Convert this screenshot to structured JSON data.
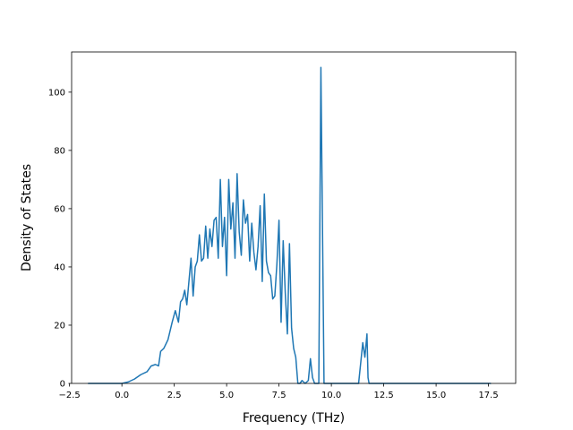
{
  "chart_data": {
    "type": "line",
    "title": "",
    "xlabel": "Frequency (THz)",
    "ylabel": "Density of States",
    "xlim": [
      -2.4,
      18.8
    ],
    "ylim": [
      0,
      113.8
    ],
    "grid": false,
    "legend": "none",
    "x_ticks": [
      -2.5,
      0.0,
      2.5,
      5.0,
      7.5,
      10.0,
      12.5,
      15.0,
      17.5
    ],
    "x_tick_labels": [
      "−2.5",
      "0.0",
      "2.5",
      "5.0",
      "7.5",
      "10.0",
      "12.5",
      "15.0",
      "17.5"
    ],
    "y_ticks": [
      0,
      20,
      40,
      60,
      80,
      100
    ],
    "y_tick_labels": [
      "0",
      "20",
      "40",
      "60",
      "80",
      "100"
    ],
    "series": [
      {
        "color": "#1f77b4",
        "x": [
          -1.6,
          -1.0,
          -0.5,
          0.0,
          0.3,
          0.6,
          0.9,
          1.2,
          1.4,
          1.6,
          1.75,
          1.85,
          2.0,
          2.2,
          2.4,
          2.55,
          2.7,
          2.8,
          2.9,
          3.0,
          3.1,
          3.2,
          3.3,
          3.4,
          3.5,
          3.6,
          3.7,
          3.8,
          3.9,
          4.0,
          4.1,
          4.2,
          4.3,
          4.4,
          4.5,
          4.6,
          4.7,
          4.8,
          4.9,
          5.0,
          5.1,
          5.2,
          5.3,
          5.4,
          5.5,
          5.6,
          5.7,
          5.8,
          5.9,
          6.0,
          6.1,
          6.2,
          6.3,
          6.4,
          6.5,
          6.6,
          6.7,
          6.8,
          6.9,
          7.0,
          7.1,
          7.2,
          7.3,
          7.4,
          7.5,
          7.6,
          7.7,
          7.8,
          7.9,
          8.0,
          8.1,
          8.2,
          8.3,
          8.4,
          8.5,
          8.6,
          8.75,
          8.9,
          9.0,
          9.1,
          9.2,
          9.3,
          9.4,
          9.5,
          9.65,
          9.75,
          9.8,
          9.85,
          9.95,
          10.5,
          11.0,
          11.3,
          11.5,
          11.6,
          11.7,
          11.75,
          11.8,
          11.85,
          11.9,
          12.0,
          13.0,
          15.0,
          17.6
        ],
        "y": [
          0,
          0,
          0,
          0,
          0.5,
          1.5,
          3,
          4,
          6,
          6.5,
          6,
          11,
          12,
          15,
          21,
          25,
          21,
          28,
          29,
          32,
          27,
          35,
          43,
          30,
          40,
          42,
          51,
          42,
          43,
          54,
          43,
          53,
          47,
          56,
          57,
          43,
          70,
          47,
          57,
          37,
          70,
          53,
          62,
          43,
          72,
          52,
          44,
          63,
          55,
          58,
          42,
          55,
          45,
          39,
          47,
          61,
          35,
          65,
          42,
          38,
          37,
          29,
          30,
          41,
          56,
          21,
          49,
          31,
          17,
          48,
          19,
          12,
          9,
          0,
          0,
          1,
          0,
          1,
          8.5,
          2,
          0,
          0,
          0,
          108.5,
          0,
          0,
          0,
          0,
          0,
          0,
          0,
          0,
          14,
          9,
          17,
          2,
          0,
          0,
          0,
          0,
          0,
          0,
          0
        ]
      }
    ]
  }
}
